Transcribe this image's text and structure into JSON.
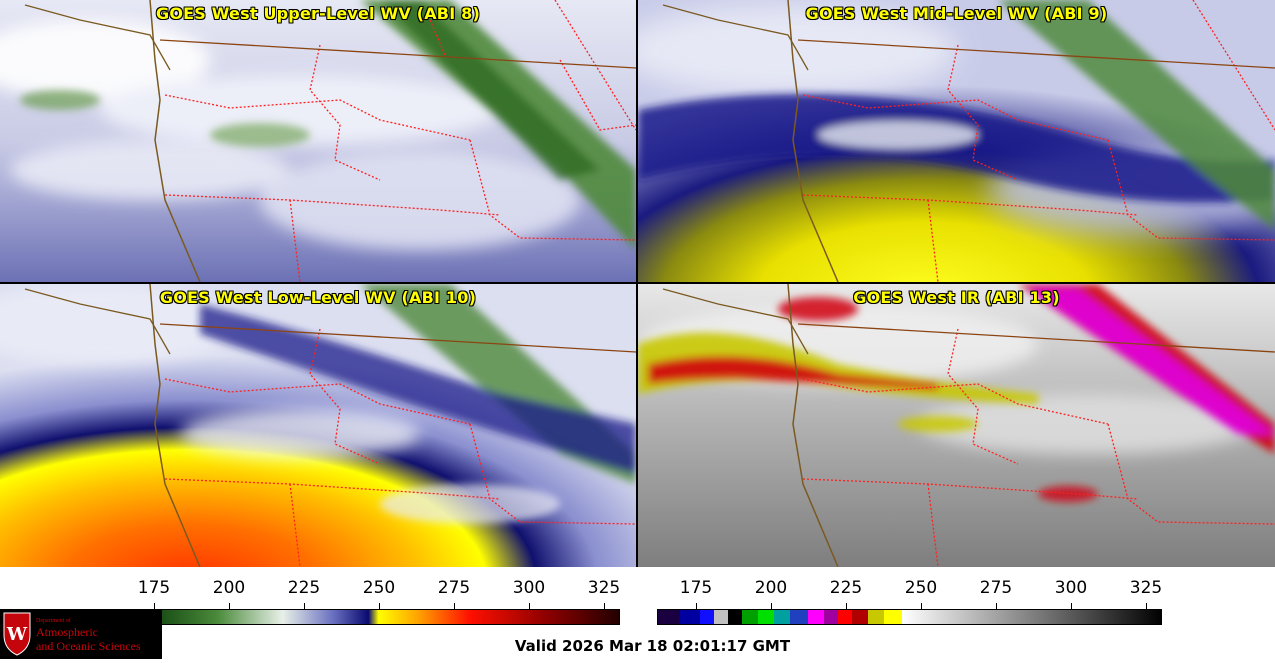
{
  "panels": [
    {
      "title": "GOES West Upper-Level WV (ABI 8)"
    },
    {
      "title": "GOES West Mid-Level WV (ABI 9)"
    },
    {
      "title": "GOES West Low-Level WV (ABI 10)"
    },
    {
      "title": "GOES West IR (ABI 13)"
    }
  ],
  "wv_scale": {
    "ticks": [
      "175",
      "200",
      "225",
      "250",
      "275",
      "300",
      "325"
    ]
  },
  "ir_scale": {
    "ticks": [
      "175",
      "200",
      "225",
      "250",
      "275",
      "300",
      "325"
    ]
  },
  "logo": {
    "line1": "Department of",
    "line2": "Atmospheric",
    "line3": "and Oceanic Sciences"
  },
  "valid_time": "Valid 2026 Mar 18 02:01:17 GMT",
  "colors": {
    "title": "#ffff00",
    "state_borders": "#ff2020",
    "coast": "#7a5a20",
    "logo_red": "#c5050c"
  }
}
